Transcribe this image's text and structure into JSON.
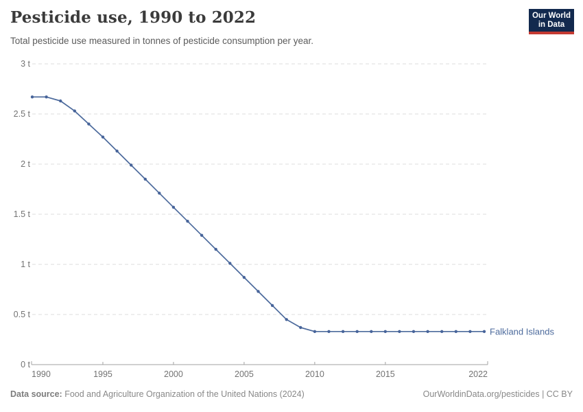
{
  "header": {
    "title": "Pesticide use, 1990 to 2022",
    "subtitle": "Total pesticide use measured in tonnes of pesticide consumption per year.",
    "logo": {
      "line1": "Our World",
      "line2": "in Data",
      "bg_color": "#12294e",
      "accent_color": "#c43a32"
    }
  },
  "chart_data": {
    "type": "line",
    "title": "Pesticide use, 1990 to 2022",
    "xlabel": "",
    "ylabel": "",
    "x": [
      1990,
      1991,
      1992,
      1993,
      1994,
      1995,
      1996,
      1997,
      1998,
      1999,
      2000,
      2001,
      2002,
      2003,
      2004,
      2005,
      2006,
      2007,
      2008,
      2009,
      2010,
      2011,
      2012,
      2013,
      2014,
      2015,
      2016,
      2017,
      2018,
      2019,
      2020,
      2021,
      2022
    ],
    "series": [
      {
        "name": "Falkland Islands",
        "color": "#4c6a9c",
        "marker_color": "#47649a",
        "values": [
          2.67,
          2.67,
          2.63,
          2.53,
          2.4,
          2.27,
          2.13,
          1.99,
          1.85,
          1.71,
          1.57,
          1.43,
          1.29,
          1.15,
          1.01,
          0.87,
          0.73,
          0.59,
          0.45,
          0.37,
          0.33,
          0.33,
          0.33,
          0.33,
          0.33,
          0.33,
          0.33,
          0.33,
          0.33,
          0.33,
          0.33,
          0.33,
          0.33
        ]
      }
    ],
    "xlim": [
      1990,
      2022
    ],
    "ylim": [
      0,
      3
    ],
    "xticks": [
      1990,
      1995,
      2000,
      2005,
      2010,
      2015,
      2022
    ],
    "yticks": [
      0,
      0.5,
      1,
      1.5,
      2,
      2.5,
      3
    ],
    "ytick_labels": [
      "0 t",
      "0.5 t",
      "1 t",
      "1.5 t",
      "2 t",
      "2.5 t",
      "3 t"
    ],
    "grid": "horizontal-dashed",
    "legend_position": "end-of-line",
    "colors": {
      "gridline": "#dcdcdc",
      "axis": "#a1a1a1",
      "tick_label": "#737373"
    }
  },
  "footer": {
    "source_label": "Data source:",
    "source_text": "Food and Agriculture Organization of the United Nations (2024)",
    "link_text": "OurWorldinData.org/pesticides | CC BY"
  }
}
